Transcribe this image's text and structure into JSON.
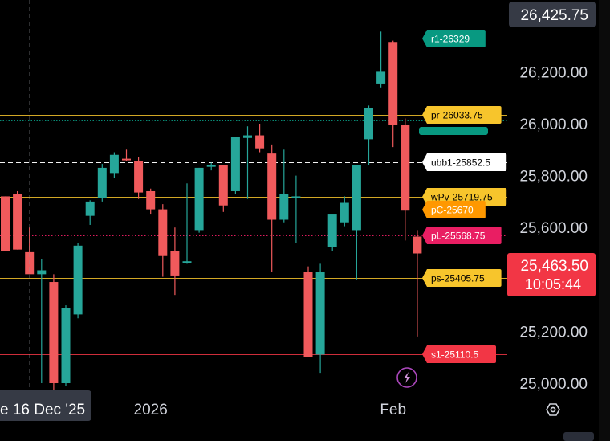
{
  "chart_data": {
    "type": "candlestick",
    "y_axis": {
      "ylim": [
        24920,
        26480
      ],
      "ticks": [
        "26,200.00",
        "26,000.00",
        "25,800.00",
        "25,600.00",
        "25,200.00",
        "25,000.00"
      ],
      "tick_values": [
        26200,
        26000,
        25800,
        25600,
        25200,
        25000
      ],
      "crosshair_label": "26,425.75",
      "crosshair_value": 26425.75,
      "last_price": "25,463.50",
      "last_price_value": 25463.5,
      "countdown": "10:05:44"
    },
    "x_axis": {
      "labels": [
        {
          "text": "2026",
          "index": 12
        },
        {
          "text": "Feb",
          "index": 32
        }
      ],
      "crosshair_date": "e 16 Dec '25",
      "crosshair_index": 2
    },
    "candles": [
      {
        "o": 25720,
        "h": 25720,
        "l": 25510,
        "c": 25510
      },
      {
        "o": 25730,
        "h": 25740,
        "l": 25515,
        "c": 25515
      },
      {
        "o": 25505,
        "h": 25600,
        "l": 25420,
        "c": 25420
      },
      {
        "o": 25420,
        "h": 25480,
        "l": 25000,
        "c": 25435
      },
      {
        "o": 25390,
        "h": 25420,
        "l": 24900,
        "c": 25000
      },
      {
        "o": 25000,
        "h": 25300,
        "l": 24990,
        "c": 25290
      },
      {
        "o": 25265,
        "h": 25540,
        "l": 25250,
        "c": 25530
      },
      {
        "o": 25645,
        "h": 25705,
        "l": 25610,
        "c": 25700
      },
      {
        "o": 25715,
        "h": 25845,
        "l": 25700,
        "c": 25830
      },
      {
        "o": 25810,
        "h": 25890,
        "l": 25790,
        "c": 25880
      },
      {
        "o": 25865,
        "h": 25900,
        "l": 25855,
        "c": 25860
      },
      {
        "o": 25855,
        "h": 25870,
        "l": 25710,
        "c": 25735
      },
      {
        "o": 25740,
        "h": 25750,
        "l": 25650,
        "c": 25670
      },
      {
        "o": 25670,
        "h": 25690,
        "l": 25410,
        "c": 25490
      },
      {
        "o": 25510,
        "h": 25600,
        "l": 25340,
        "c": 25415
      },
      {
        "o": 25465,
        "h": 25770,
        "l": 25460,
        "c": 25470
      },
      {
        "o": 25590,
        "h": 25830,
        "l": 25580,
        "c": 25830
      },
      {
        "o": 25835,
        "h": 25850,
        "l": 25820,
        "c": 25840
      },
      {
        "o": 25840,
        "h": 25840,
        "l": 25660,
        "c": 25685
      },
      {
        "o": 25740,
        "h": 25950,
        "l": 25730,
        "c": 25950
      },
      {
        "o": 25945,
        "h": 25990,
        "l": 25710,
        "c": 25955
      },
      {
        "o": 25955,
        "h": 26000,
        "l": 25890,
        "c": 25905
      },
      {
        "o": 25885,
        "h": 25920,
        "l": 25430,
        "c": 25630
      },
      {
        "o": 25630,
        "h": 25900,
        "l": 25620,
        "c": 25730
      },
      {
        "o": 25720,
        "h": 25800,
        "l": 25540,
        "c": 25720
      },
      {
        "o": 25430,
        "h": 25450,
        "l": 25100,
        "c": 25100
      },
      {
        "o": 25110,
        "h": 25460,
        "l": 25040,
        "c": 25430
      },
      {
        "o": 25525,
        "h": 25645,
        "l": 25510,
        "c": 25650
      },
      {
        "o": 25620,
        "h": 25720,
        "l": 25605,
        "c": 25695
      },
      {
        "o": 25590,
        "h": 25840,
        "l": 25400,
        "c": 25840
      },
      {
        "o": 25940,
        "h": 26070,
        "l": 25840,
        "c": 26060
      },
      {
        "o": 26155,
        "h": 26355,
        "l": 26140,
        "c": 26200
      },
      {
        "o": 26315,
        "h": 26320,
        "l": 25910,
        "c": 25995
      },
      {
        "o": 25995,
        "h": 26020,
        "l": 25550,
        "c": 25665
      },
      {
        "o": 25565,
        "h": 25590,
        "l": 25180,
        "c": 25500
      }
    ],
    "levels": [
      {
        "label": "r1-26329",
        "value": 26329,
        "color": "#089981",
        "text_color": "#ffffff",
        "line": "solid"
      },
      {
        "label": "pr-26033.75",
        "value": 26033.75,
        "color": "#f7c52c",
        "text_color": "#000000",
        "line": "solid"
      },
      {
        "label": "ubb1-25852.5",
        "value": 25852.5,
        "color": "#ffffff",
        "text_color": "#000000",
        "line": "dashed"
      },
      {
        "label": "wPv-25719.75",
        "value": 25719.75,
        "color": "#f7c52c",
        "text_color": "#000000",
        "line": "solid"
      },
      {
        "label": "pC-25670",
        "value": 25670,
        "color": "#ff9800",
        "text_color": "#ffffff",
        "line": "dotted"
      },
      {
        "label": "pL-25568.75",
        "value": 25568.75,
        "color": "#e91e63",
        "text_color": "#ffffff",
        "line": "dotted"
      },
      {
        "label": "ps-25405.75",
        "value": 25405.75,
        "color": "#f7c52c",
        "text_color": "#000000",
        "line": "solid"
      },
      {
        "label": "s1-25110.5",
        "value": 25110.5,
        "color": "#f23645",
        "text_color": "#ffffff",
        "line": "solid"
      }
    ],
    "colors": {
      "up": "#26a69a",
      "down": "#f05a5c",
      "background": "#000000",
      "axis_text": "#d1d4dc",
      "crosshair": "#9598a1",
      "price_tag": "#f23645",
      "axis_badge": "#363a45"
    },
    "icons": [
      "lightning-icon",
      "settings-icon"
    ]
  }
}
